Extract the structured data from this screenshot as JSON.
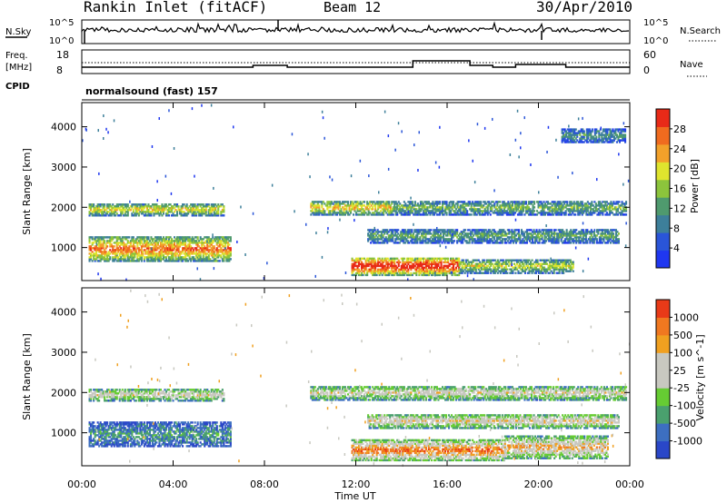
{
  "header": {
    "station": "Rankin Inlet (fitACF)",
    "beam": "Beam 12",
    "date": "30/Apr/2010"
  },
  "top_panel": {
    "left_label": "N.Sky",
    "left_ticks": [
      "10^5",
      "10^0"
    ],
    "right_ticks": [
      "10^5",
      "10^0"
    ],
    "right_label": "N.Search"
  },
  "freq_panel": {
    "left_label_1": "Freq.",
    "left_label_2": "[MHz]",
    "left_ticks": [
      "18",
      "8"
    ],
    "right_ticks": [
      "60",
      "0"
    ],
    "right_label": "Nave",
    "cpid_label": "CPID",
    "cpid_value": "normalsound (fast) 157"
  },
  "chart_data": [
    {
      "type": "heatmap",
      "title": "",
      "ylabel": "Slant Range [km]",
      "xlabel": "",
      "x_range_hours": [
        0,
        24
      ],
      "ylim": [
        180,
        4600
      ],
      "y_ticks": [
        "1000",
        "2000",
        "3000",
        "4000"
      ],
      "colorbar": {
        "label": "Power [dB]",
        "ticks": [
          "4",
          "8",
          "12",
          "16",
          "20",
          "24",
          "28"
        ],
        "range": [
          0,
          30
        ]
      }
    },
    {
      "type": "heatmap",
      "title": "",
      "ylabel": "Slant Range [km]",
      "xlabel": "Time UT",
      "x_range_hours": [
        0,
        24
      ],
      "ylim": [
        180,
        4600
      ],
      "y_ticks": [
        "1000",
        "2000",
        "3000",
        "4000"
      ],
      "x_ticks": [
        "00:00",
        "04:00",
        "08:00",
        "12:00",
        "16:00",
        "20:00",
        "00:00"
      ],
      "colorbar": {
        "label": "Velocity [m s^-1]",
        "ticks": [
          "1000",
          "500",
          "100",
          "25",
          "-25",
          "-100",
          "-500",
          "-1000"
        ]
      }
    }
  ],
  "colors": {
    "power_scale": [
      "#1f37f0",
      "#2a55d8",
      "#3d7f9a",
      "#4f9a6e",
      "#8cc43c",
      "#dfe42e",
      "#f2a12a",
      "#f06b1f",
      "#e82a18"
    ],
    "velocity_scale": [
      "#2a47c8",
      "#3d6fc1",
      "#4aa06e",
      "#66cc33",
      "#c8c8c0",
      "#c8c8c0",
      "#f0a020",
      "#f07820",
      "#e83a18"
    ]
  },
  "echo_bands": {
    "power": [
      {
        "t0": 0.3,
        "t1": 6.2,
        "r0": 1780,
        "r1": 2080,
        "level": 0.55
      },
      {
        "t0": 0.3,
        "t1": 6.5,
        "r0": 650,
        "r1": 1250,
        "level": 0.72
      },
      {
        "t0": 10.0,
        "t1": 13.6,
        "r0": 1800,
        "r1": 2150,
        "level": 0.6
      },
      {
        "t0": 13.6,
        "t1": 23.8,
        "r0": 1800,
        "r1": 2150,
        "level": 0.4
      },
      {
        "t0": 12.5,
        "t1": 23.5,
        "r0": 1100,
        "r1": 1450,
        "level": 0.35
      },
      {
        "t0": 11.8,
        "t1": 16.5,
        "r0": 300,
        "r1": 750,
        "level": 0.9
      },
      {
        "t0": 16.5,
        "t1": 21.5,
        "r0": 350,
        "r1": 700,
        "level": 0.5
      },
      {
        "t0": 21.0,
        "t1": 23.8,
        "r0": 3600,
        "r1": 3950,
        "level": 0.3
      }
    ],
    "velocity": [
      {
        "t0": 0.3,
        "t1": 6.2,
        "r0": 1780,
        "r1": 2080,
        "level": 0.5
      },
      {
        "t0": 0.3,
        "t1": 6.5,
        "r0": 650,
        "r1": 1250,
        "level": 0.22
      },
      {
        "t0": 10.0,
        "t1": 23.8,
        "r0": 1800,
        "r1": 2150,
        "level": 0.5
      },
      {
        "t0": 12.5,
        "t1": 23.5,
        "r0": 1100,
        "r1": 1450,
        "level": 0.55
      },
      {
        "t0": 11.8,
        "t1": 18.5,
        "r0": 300,
        "r1": 800,
        "level": 0.75
      },
      {
        "t0": 18.5,
        "t1": 23.0,
        "r0": 350,
        "r1": 900,
        "level": 0.62
      }
    ]
  }
}
